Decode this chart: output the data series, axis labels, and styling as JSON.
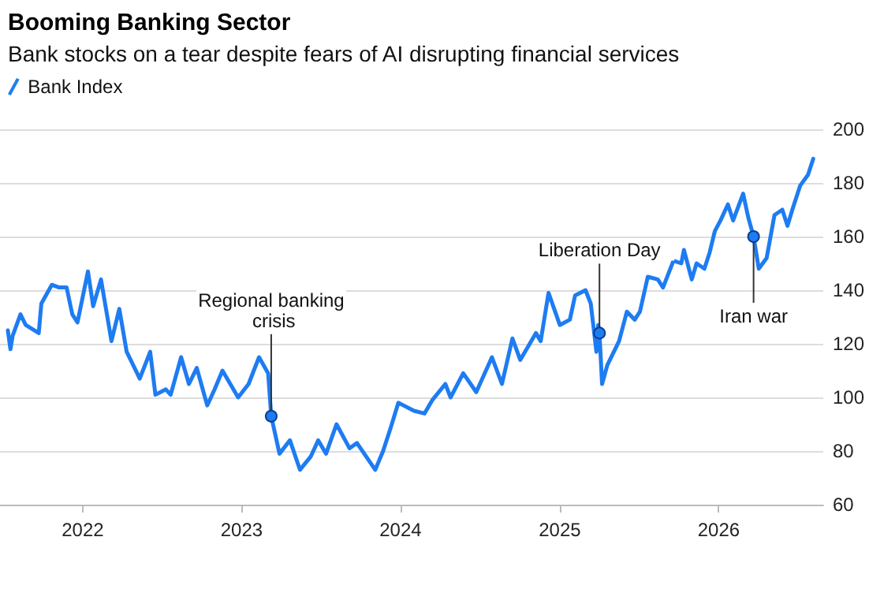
{
  "chart_data": {
    "type": "line",
    "title": "Booming Banking Sector",
    "subtitle": "Bank stocks on a tear despite fears of AI disrupting financial services",
    "x": [
      "2021-07-13",
      "2021-07-19",
      "2021-07-24",
      "2021-08-11",
      "2021-08-23",
      "2021-09-22",
      "2021-09-28",
      "2021-10-22",
      "2021-11-08",
      "2021-11-25",
      "2021-12-08",
      "2021-12-20",
      "2022-01-13",
      "2022-01-25",
      "2022-02-12",
      "2022-03-08",
      "2022-03-26",
      "2022-04-12",
      "2022-05-12",
      "2022-06-05",
      "2022-06-17",
      "2022-07-11",
      "2022-07-22",
      "2022-08-15",
      "2022-09-02",
      "2022-09-20",
      "2022-10-14",
      "2022-10-31",
      "2022-11-18",
      "2022-12-24",
      "2023-01-17",
      "2023-02-10",
      "2023-03-03",
      "2023-03-10",
      "2023-03-29",
      "2023-04-22",
      "2023-05-15",
      "2023-06-09",
      "2023-06-26",
      "2023-07-14",
      "2023-08-07",
      "2023-09-06",
      "2023-09-23",
      "2023-11-04",
      "2023-11-22",
      "2023-12-10",
      "2023-12-27",
      "2024-02-01",
      "2024-02-25",
      "2024-03-14",
      "2024-04-13",
      "2024-04-25",
      "2024-05-24",
      "2024-06-23",
      "2024-07-29",
      "2024-08-21",
      "2024-09-14",
      "2024-10-02",
      "2024-10-20",
      "2024-11-07",
      "2024-11-18",
      "2024-12-06",
      "2025-01-01",
      "2025-01-24",
      "2025-02-05",
      "2025-03-01",
      "2025-03-13",
      "2025-03-26",
      "2025-03-30",
      "2025-04-02",
      "2025-04-08",
      "2025-04-20",
      "2025-05-17",
      "2025-06-04",
      "2025-06-22",
      "2025-07-04",
      "2025-07-22",
      "2025-08-14",
      "2025-08-26",
      "2025-09-19",
      "2025-10-07",
      "2025-10-13",
      "2025-10-31",
      "2025-11-11",
      "2025-11-29",
      "2025-12-11",
      "2025-12-23",
      "2026-01-05",
      "2026-01-22",
      "2026-02-03",
      "2026-02-26",
      "2026-03-10",
      "2026-03-22",
      "2026-04-03",
      "2026-04-21",
      "2026-05-09",
      "2026-05-27",
      "2026-06-08",
      "2026-06-19",
      "2026-07-07",
      "2026-07-25",
      "2026-08-06"
    ],
    "series": [
      {
        "name": "Bank Index",
        "color": "#1e7cf2",
        "values": [
          125,
          118,
          123,
          131,
          127,
          124,
          135,
          142,
          141,
          141,
          131,
          128,
          147,
          134,
          144,
          121,
          133,
          117,
          107,
          117,
          101,
          103,
          101,
          115,
          105,
          111,
          97,
          103,
          110,
          100,
          105,
          115,
          109,
          93,
          79,
          84,
          73,
          78,
          84,
          79,
          90,
          81,
          83,
          73,
          80,
          89,
          98,
          95,
          94,
          99,
          105,
          100,
          109,
          102,
          115,
          105,
          122,
          114,
          119,
          124,
          121,
          139,
          127,
          129,
          138,
          140,
          135,
          117,
          127,
          124,
          105,
          112,
          121,
          132,
          129,
          132,
          145,
          144,
          141,
          151,
          150,
          155,
          144,
          150,
          148,
          154,
          162,
          166,
          172,
          166,
          176,
          167,
          160,
          148,
          152,
          168,
          170,
          164,
          170,
          179,
          183,
          189
        ]
      }
    ],
    "xlim": [
      "2021-06-25",
      "2026-08-29"
    ],
    "xticks": [
      {
        "value": "2022-01-01",
        "label": "2022"
      },
      {
        "value": "2023-01-01",
        "label": "2023"
      },
      {
        "value": "2024-01-01",
        "label": "2024"
      },
      {
        "value": "2025-01-01",
        "label": "2025"
      },
      {
        "value": "2026-01-01",
        "label": "2026"
      }
    ],
    "ylim": [
      60,
      200
    ],
    "yticks": [
      60,
      80,
      100,
      120,
      140,
      160,
      180,
      200
    ],
    "annotations": [
      {
        "text": "Regional banking crisis",
        "x": "2023-03-10",
        "y": 93
      },
      {
        "text": "Liberation Day",
        "x": "2025-04-02",
        "y": 124
      },
      {
        "text": "Iran war",
        "x": "2026-03-22",
        "y": 160
      }
    ],
    "grid": "y",
    "legend": "top left",
    "marker": "none",
    "line_style": "solid"
  }
}
